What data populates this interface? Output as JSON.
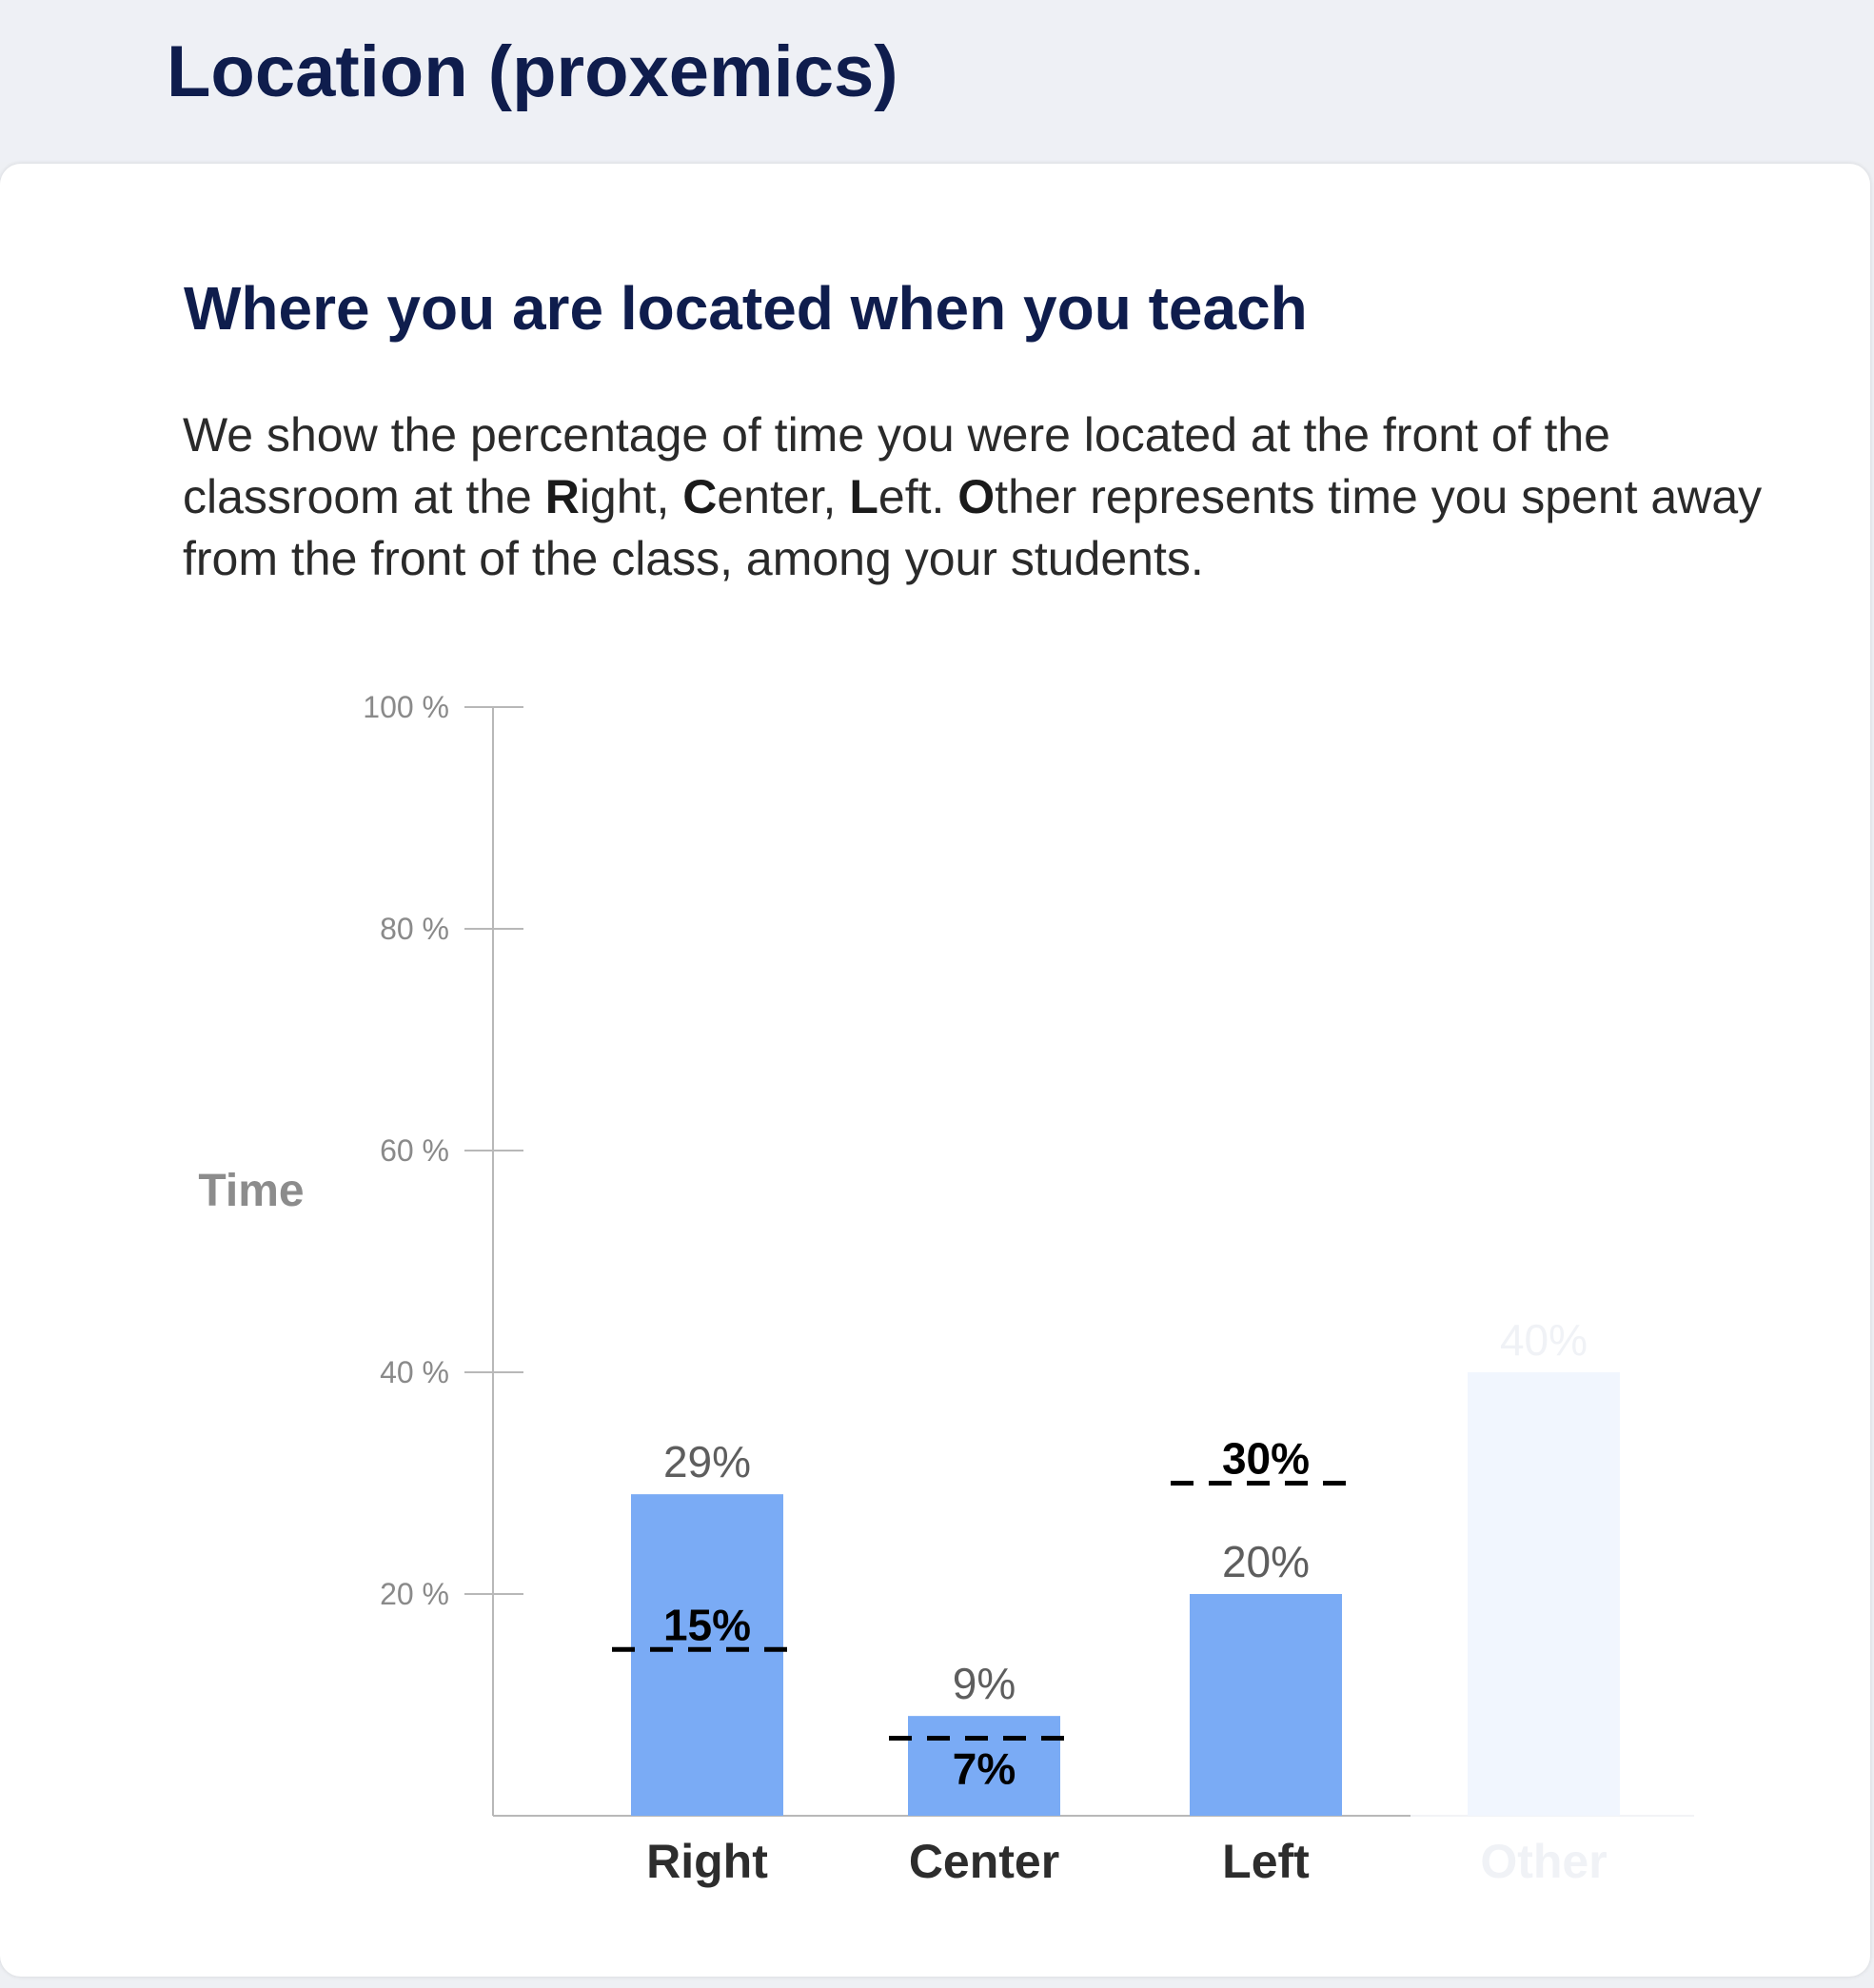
{
  "header": {
    "title": "Location (proxemics)"
  },
  "card": {
    "title": "Where you are located when you teach",
    "description": {
      "p1": "We show the percentage of time you were located at the front of the classroom at the ",
      "r_bold": "R",
      "r_rest": "ight, ",
      "c_bold": "C",
      "c_rest": "enter, ",
      "l_bold": "L",
      "l_rest": "eft. ",
      "o_bold": "O",
      "o_rest": "ther represents time you spent away from the front of the class, among your students."
    }
  },
  "chart_data": {
    "type": "bar",
    "ylabel": "Time",
    "ylim": [
      0,
      100
    ],
    "yticks": [
      20,
      40,
      60,
      80,
      100
    ],
    "ytick_labels": [
      "20 %",
      "40 %",
      "60 %",
      "80 %",
      "100 %"
    ],
    "categories": [
      "Right",
      "Center",
      "Left",
      "Other"
    ],
    "values": [
      29,
      9,
      20,
      40
    ],
    "value_labels": [
      "29%",
      "9%",
      "20%",
      "40%"
    ],
    "reference": {
      "values": [
        15,
        7,
        30
      ],
      "labels": [
        "15%",
        "7%",
        "30%"
      ]
    },
    "colors": {
      "bar": "#7aabf5",
      "bar_faded": "#f1f6fe",
      "text_faded": "#f0f2f6",
      "value_text": "#5e5e5e",
      "category_text": "#2d2d2d",
      "axis": "#b8b8b8"
    },
    "faded_categories": [
      "Other"
    ]
  }
}
